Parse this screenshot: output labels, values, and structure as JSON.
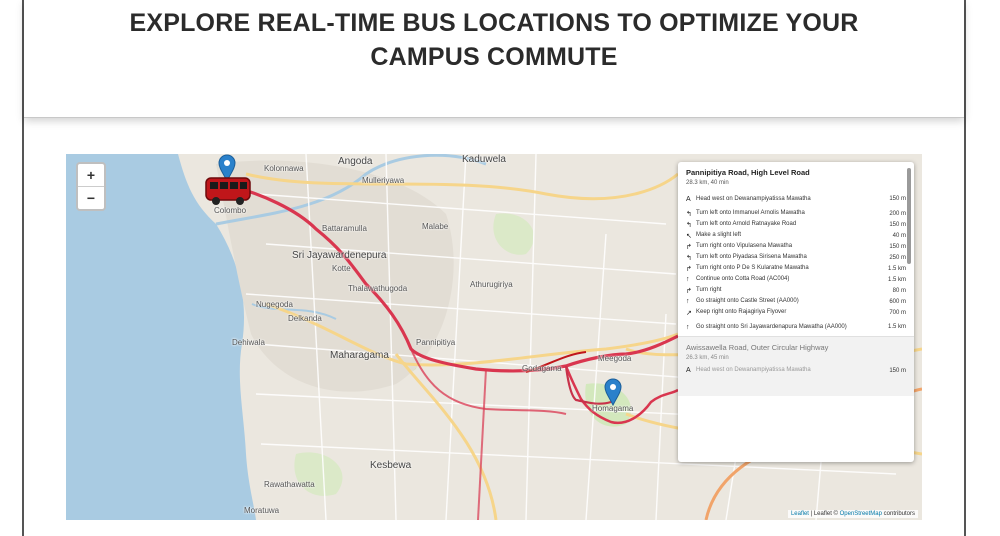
{
  "header": {
    "line1": "EXPLORE REAL-TIME BUS LOCATIONS TO OPTIMIZE YOUR",
    "line2": "CAMPUS COMMUTE"
  },
  "zoom": {
    "in": "+",
    "out": "−"
  },
  "places": {
    "angoda": "Angoda",
    "kaduwela": "Kaduwela",
    "kolonnawa": "Kolonnawa",
    "mulleriyawa": "Mulleriyawa",
    "battaramulla": "Battaramulla",
    "malabe": "Malabe",
    "sri_jayawardenepura": "Sri Jayawardenepura",
    "kotte": "Kotte",
    "thalawathugoda": "Thalawathugoda",
    "athurugiriya": "Athurugiriya",
    "nugegoda": "Nugegoda",
    "dehiwala": "Dehiwala",
    "maharagama": "Maharagama",
    "homagama": "Homagama",
    "meegoda": "Meegoda",
    "kesbewa": "Kesbewa",
    "rawathawatta": "Rawathawatta",
    "moratuwa": "Moratuwa",
    "delkanda": "Delkanda",
    "godagama": "Godagama",
    "pannipitiya": "Pannipitiya",
    "colombo": "Colombo"
  },
  "itinerary": {
    "route1": {
      "title": "Pannipitiya Road, High Level Road",
      "summary": "28.3 km, 40 min",
      "steps": [
        {
          "icon": "A",
          "text": "Head west on Dewanampiyatissa Mawatha",
          "dist": "150 m"
        },
        {
          "icon": "↰",
          "text": "Turn left onto Immanuel Arnolis Mawatha",
          "dist": "200 m"
        },
        {
          "icon": "↰",
          "text": "Turn left onto Arnold Ratnayake Road",
          "dist": "150 m"
        },
        {
          "icon": "↖",
          "text": "Make a slight left",
          "dist": "40 m"
        },
        {
          "icon": "↱",
          "text": "Turn right onto Vipulasena Mawatha",
          "dist": "150 m"
        },
        {
          "icon": "↰",
          "text": "Turn left onto Piyadasa Sirisena Mawatha",
          "dist": "250 m"
        },
        {
          "icon": "↱",
          "text": "Turn right onto P De S Kularatne Mawatha",
          "dist": "1.5 km"
        },
        {
          "icon": "↑",
          "text": "Continue onto Cotta Road (AC004)",
          "dist": "1.5 km"
        },
        {
          "icon": "↱",
          "text": "Turn right",
          "dist": "80 m"
        },
        {
          "icon": "↑",
          "text": "Go straight onto Castle Street (AA000)",
          "dist": "600 m"
        },
        {
          "icon": "↗",
          "text": "Keep right onto Rajagiriya Flyover",
          "dist": "700 m"
        },
        {
          "icon": "↑",
          "text": "Go straight onto Sri Jayawardenapura Mawatha (AA000)",
          "dist": "1.5 km"
        }
      ]
    },
    "route2": {
      "title": "Awissawella Road, Outer Circular Highway",
      "summary": "26.3 km, 45 min",
      "first_step": {
        "icon": "A",
        "text": "Head west on Dewanampiyatissa Mawatha",
        "dist": "150 m"
      }
    }
  },
  "attribution": {
    "leaflet": "Leaflet",
    "sep": " | Leaflet © ",
    "osm": "OpenStreetMap",
    "tail": " contributors"
  },
  "colors": {
    "sea": "#a9cbe2",
    "land": "#ebe7df",
    "route": "#d9364f",
    "pin": "#2a81cb",
    "bus": "#c0161a"
  }
}
